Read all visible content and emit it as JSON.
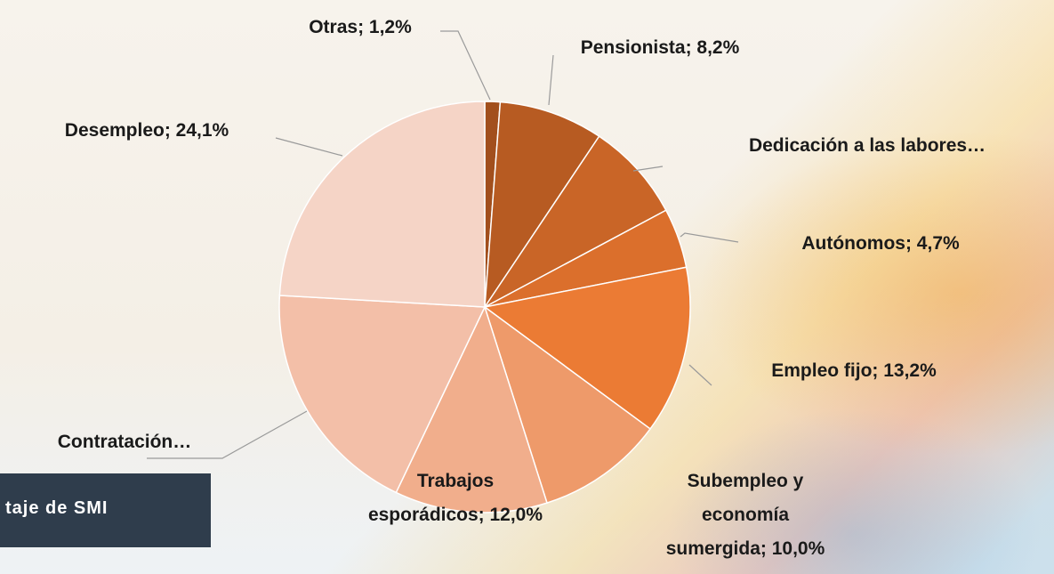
{
  "chart_data": {
    "type": "pie",
    "value_labels": [
      "Otras; 1,2%",
      "Pensionista; 8,2%",
      "Dedicación a las labores…",
      "Autónomos; 4,7%",
      "Empleo fijo; 13,2%",
      "Subempleo y economía sumergida; 10,0%",
      "Trabajos esporádicos; 12,0%",
      "Contratación…",
      "Desempleo; 24,1%"
    ],
    "values": [
      1.2,
      8.2,
      7.8,
      4.7,
      13.2,
      10.0,
      12.0,
      18.8,
      24.1
    ],
    "colors": [
      "#a24f1d",
      "#b75b22",
      "#c96527",
      "#db6f2c",
      "#eb7b34",
      "#ee9a6a",
      "#f1ae8c",
      "#f3bfa8",
      "#f5d4c6"
    ]
  },
  "badge": "taje de SMI"
}
